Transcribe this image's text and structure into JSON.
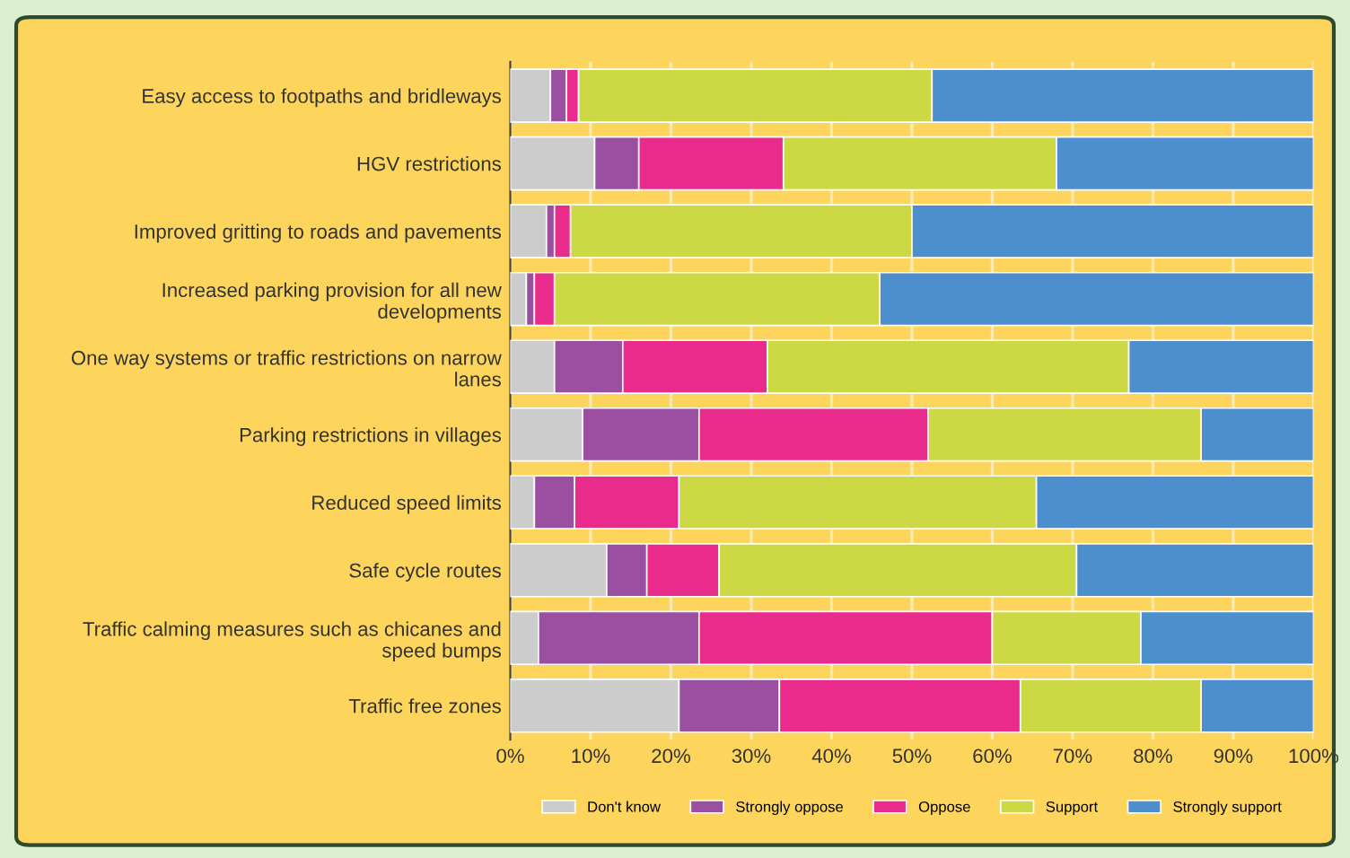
{
  "chart_data": {
    "type": "bar",
    "orientation": "horizontal",
    "stacked": true,
    "categories": [
      "Easy access to footpaths and bridleways",
      "HGV restrictions",
      "Improved gritting to roads and pavements",
      "Increased parking provision for all new\ndevelopments",
      "One way systems or traffic restrictions on narrow\nlanes",
      "Parking restrictions in villages",
      "Reduced speed limits",
      "Safe cycle routes",
      "Traffic calming measures such as chicanes and\nspeed bumps",
      "Traffic free zones"
    ],
    "series": [
      {
        "name": "Don't know",
        "color": "#cccccc",
        "values": [
          5,
          10.5,
          4.5,
          2,
          5.5,
          9,
          3,
          12,
          3.5,
          21
        ]
      },
      {
        "name": "Strongly oppose",
        "color": "#9b4fa0",
        "values": [
          2,
          5.5,
          1,
          1,
          8.5,
          14.5,
          5,
          5,
          20,
          12.5
        ]
      },
      {
        "name": "Oppose",
        "color": "#e92c8c",
        "values": [
          1.5,
          18,
          2,
          2.5,
          18,
          28.5,
          13,
          9,
          36.5,
          30
        ]
      },
      {
        "name": "Support",
        "color": "#cdd944",
        "values": [
          44,
          34,
          42.5,
          40.5,
          45,
          34,
          44.5,
          44.5,
          18.5,
          22.5
        ]
      },
      {
        "name": "Strongly support",
        "color": "#4d8fcd",
        "values": [
          47.5,
          32,
          50,
          54,
          23,
          14,
          34.5,
          29.5,
          21.5,
          14
        ]
      }
    ],
    "xlim": [
      0,
      100
    ],
    "xticks": [
      {
        "value": 0,
        "label": "0%"
      },
      {
        "value": 10,
        "label": "10%"
      },
      {
        "value": 20,
        "label": "20%"
      },
      {
        "value": 30,
        "label": "30%"
      },
      {
        "value": 40,
        "label": "40%"
      },
      {
        "value": 50,
        "label": "50%"
      },
      {
        "value": 60,
        "label": "60%"
      },
      {
        "value": 70,
        "label": "70%"
      },
      {
        "value": 80,
        "label": "80%"
      },
      {
        "value": 90,
        "label": "90%"
      },
      {
        "value": 100,
        "label": "100%"
      }
    ],
    "grid": "x",
    "legend": "bottom"
  }
}
